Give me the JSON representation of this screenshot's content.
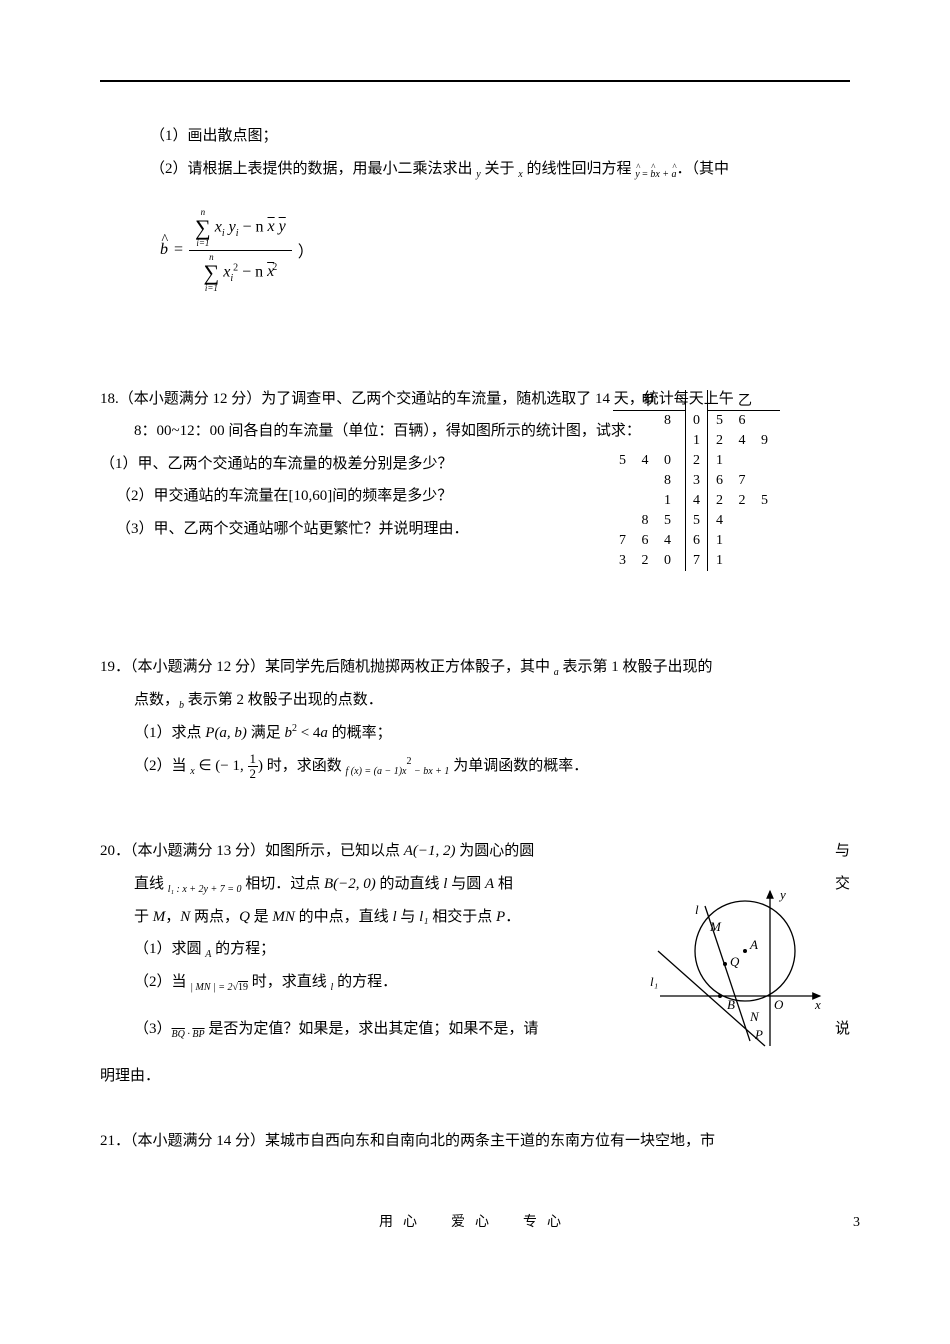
{
  "page": {
    "footer": "用心　爱心　专心",
    "number": "3"
  },
  "q17": {
    "p1_label": "（1）",
    "p1_text": "画出散点图；",
    "p2_label": "（2）",
    "p2_text_a": "请根据上表提供的数据，用最小二乘法求出 ",
    "p2_y": "y",
    "p2_mid": " 关于 ",
    "p2_x": "x",
    "p2_text_b": " 的线性回归方程 ",
    "p2_eq_y": "y",
    "p2_eq_eq": " = ",
    "p2_eq_b": "b",
    "p2_eq_xp": "x + ",
    "p2_eq_a": "a",
    "p2_tail": "．（其中",
    "formula": {
      "lhs_b": "b",
      "eq": " = ",
      "sum_top": "n",
      "sum_sym": "∑",
      "sum_bot": "i=1",
      "num_xi": "x",
      "num_i1": "i",
      "num_yi": " y",
      "num_i2": "i",
      "num_minus": " − n",
      "num_xbar": "x",
      "num_sp": " ",
      "num_ybar": "y",
      "den_xi": "x",
      "den_i1": "i",
      "den_sq": "2",
      "den_minus": " − n",
      "den_xbar": "x",
      "den_sq2": "2",
      "paren": "）"
    }
  },
  "q18": {
    "title": "18.（本小题满分 12 分）为了调查甲、乙两个交通站的车流量，随机选取了 14 天，统计每天上午",
    "title2": "8：00~12：00 间各自的车流量（单位：百辆），得如图所示的统计图，试求：",
    "p1": "（1）甲、乙两个交通站的车流量的极差分别是多少？",
    "p2": "（2）甲交通站的车流量在[10,60]间的频率是多少？",
    "p3": "（3）甲、乙两个交通站哪个站更繁忙？并说明理由．",
    "stem": {
      "hdr_left": "甲",
      "hdr_right": "乙",
      "rows": [
        {
          "left": "8",
          "stem": "0",
          "right": "5 6"
        },
        {
          "left": "",
          "stem": "1",
          "right": "2 4 9"
        },
        {
          "left": "5 4 0",
          "stem": "2",
          "right": "1"
        },
        {
          "left": "8",
          "stem": "3",
          "right": "6 7"
        },
        {
          "left": "1",
          "stem": "4",
          "right": "2 2 5"
        },
        {
          "left": "8 5",
          "stem": "5",
          "right": "4"
        },
        {
          "left": "7 6 4",
          "stem": "6",
          "right": "1"
        },
        {
          "left": "3 2 0",
          "stem": "7",
          "right": "1"
        }
      ]
    }
  },
  "q19": {
    "title_a": "19．（本小题满分 12 分）某同学先后随机抛掷两枚正方体骰子，其中 ",
    "a": "a",
    "title_b": " 表示第 1 枚骰子出现的",
    "title2_a": "点数，",
    "b": "b",
    "title2_b": " 表示第 2 枚骰子出现的点数．",
    "p1_a": "（1）求点 ",
    "p1_P": "P",
    "p1_paren": "(a, b)",
    "p1_mid": " 满足 ",
    "p1_b": "b",
    "p1_sq": "2",
    "p1_lt": " < 4",
    "p1_a2": "a",
    "p1_tail": " 的概率；",
    "p2_a": "（2）当 ",
    "p2_x": "x",
    "p2_in": " ∈ (− 1, ",
    "frac_num": "1",
    "frac_den": "2",
    "p2_rb": ")",
    "p2_mid": " 时，求函数 ",
    "p2_f": "f (x) = (a − 1)x",
    "p2_sq": "2",
    "p2_m": " − bx + 1",
    "p2_tail": " 为单调函数的概率．"
  },
  "q20": {
    "l1a": "20．（本小题满分 13 分）如图所示，已知以点 ",
    "A": "A(−1, 2)",
    "l1b": " 为圆心的圆",
    "l1c": "与",
    "l2a": "直线 ",
    "l1eq": "l₁ : x + 2y + 7 = 0",
    "l2b": " 相切．过点 ",
    "B": "B(−2, 0)",
    "l2c": " 的动直线 ",
    "lv": "l",
    "l2d": " 与圆 ",
    "Av": "A",
    "l2e": " 相",
    "l2f": "交",
    "l3a": "于 ",
    "M": "M",
    "l3b": "，",
    "N": "N",
    "l3c": " 两点，",
    "Q": "Q",
    "l3d": " 是 ",
    "MN": "MN",
    "l3e": " 的中点，直线 ",
    "l3f": " 与 ",
    "l1v": "l₁",
    "l3g": " 相交于点 ",
    "P": "P",
    "l3h": "．",
    "p1a": "（1）求圆 ",
    "p1b": " 的方程；",
    "p2a": "（2）当 ",
    "MNabs": "| MN | = 2",
    "sqrt": "√",
    "sqv": "19",
    "p2b": " 时，求直线 ",
    "p2c": " 的方程．",
    "p3a": "（3）",
    "BQ": "BQ",
    "dot": " · ",
    "BP": "BP",
    "p3b": " 是否为定值？如果是，求出其定值；如果不是，请",
    "p3c": "说",
    "p3tail": "明理由．",
    "diagram": {
      "labels": {
        "y": "y",
        "x": "x",
        "O": "O",
        "A": "A",
        "B": "B",
        "M": "M",
        "N": "N",
        "Q": "Q",
        "P": "P",
        "l": "l",
        "l1": "l₁"
      }
    }
  },
  "q21": {
    "line": "21．（本小题满分 14 分）某城市自西向东和自南向北的两条主干道的东南方位有一块空地，市"
  }
}
